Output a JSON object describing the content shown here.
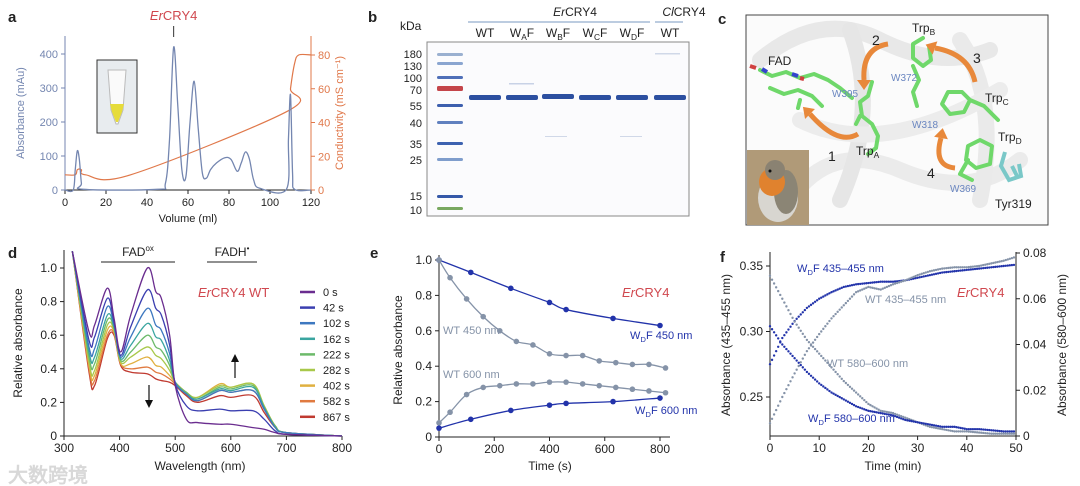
{
  "panel_labels": {
    "a": "a",
    "b": "b",
    "c": "c",
    "d": "d",
    "e": "e",
    "f": "f"
  },
  "protein": {
    "italic": "Er",
    "rest": "CRY4"
  },
  "colors": {
    "red": "#d0484f",
    "blue": "#2233aa",
    "gray": "#8593a8",
    "orange": "#e0784a",
    "abs_blue": "#7486b0"
  },
  "watermark": "大数跨境",
  "chart_data": [
    {
      "panel": "a",
      "type": "line",
      "xlabel": "Volume (ml)",
      "ylabel": "Absorbance (mAu)",
      "y2label": "Conductivity (mS cm⁻¹)",
      "xlim": [
        0,
        120
      ],
      "ylim": [
        0,
        400
      ],
      "y2lim": [
        0,
        80
      ],
      "xticks": [
        0,
        20,
        40,
        60,
        80,
        100,
        120
      ],
      "yticks": [
        0,
        100,
        200,
        300,
        400
      ],
      "y2ticks": [
        0,
        20,
        40,
        60,
        80
      ],
      "peak_annotation": {
        "x": 53
      },
      "series": [
        {
          "name": "Absorbance",
          "axis": "left",
          "points": [
            [
              0,
              0
            ],
            [
              4,
              0
            ],
            [
              5,
              60
            ],
            [
              6,
              115
            ],
            [
              7,
              90
            ],
            [
              8,
              20
            ],
            [
              9,
              2
            ],
            [
              45,
              2
            ],
            [
              49,
              20
            ],
            [
              51,
              150
            ],
            [
              53,
              420
            ],
            [
              55,
              250
            ],
            [
              57,
              60
            ],
            [
              59,
              40
            ],
            [
              61,
              200
            ],
            [
              63,
              320
            ],
            [
              65,
              180
            ],
            [
              67,
              50
            ],
            [
              69,
              35
            ],
            [
              71,
              60
            ],
            [
              74,
              80
            ],
            [
              78,
              95
            ],
            [
              81,
              90
            ],
            [
              84,
              55
            ],
            [
              86,
              80
            ],
            [
              88,
              112
            ],
            [
              90,
              90
            ],
            [
              92,
              30
            ],
            [
              95,
              5
            ],
            [
              108,
              2
            ],
            [
              109,
              150
            ],
            [
              110,
              280
            ],
            [
              111,
              50
            ],
            [
              112,
              2
            ],
            [
              120,
              0
            ]
          ]
        },
        {
          "name": "Conductivity",
          "axis": "right",
          "points": [
            [
              0,
              9
            ],
            [
              5,
              9
            ],
            [
              6,
              12
            ],
            [
              8,
              12
            ],
            [
              10,
              9
            ],
            [
              32,
              9
            ],
            [
              109,
              47
            ],
            [
              110,
              60
            ],
            [
              112,
              75
            ],
            [
              114,
              80
            ],
            [
              120,
              80
            ]
          ]
        }
      ]
    },
    {
      "panel": "b",
      "type": "gel",
      "unit_label": "kDa",
      "group_labels": [
        {
          "italic": "Er",
          "rest": "CRY4"
        },
        {
          "italic": "Cl",
          "rest": "CRY4"
        }
      ],
      "lanes": [
        {
          "main": "WT",
          "sub": "",
          "tail": ""
        },
        {
          "main": "W",
          "sub": "A",
          "tail": "F"
        },
        {
          "main": "W",
          "sub": "B",
          "tail": "F"
        },
        {
          "main": "W",
          "sub": "C",
          "tail": "F"
        },
        {
          "main": "W",
          "sub": "D",
          "tail": "F"
        },
        {
          "main": "WT",
          "sub": "",
          "tail": ""
        }
      ],
      "ladder_kda": [
        "180",
        "130",
        "100",
        "70",
        "55",
        "40",
        "35",
        "25",
        "15",
        "10"
      ]
    },
    {
      "panel": "c",
      "type": "structure",
      "labels": {
        "fad": "FAD",
        "trp_a": {
          "main": "Trp",
          "sub": "A"
        },
        "trp_b": {
          "main": "Trp",
          "sub": "B"
        },
        "trp_c": {
          "main": "Trp",
          "sub": "C"
        },
        "trp_d": {
          "main": "Trp",
          "sub": "D"
        },
        "w395": "W395",
        "w372": "W372",
        "w318": "W318",
        "w369": "W369",
        "tyr": "Tyr319",
        "step1": "1",
        "step2": "2",
        "step3": "3",
        "step4": "4"
      }
    },
    {
      "panel": "d",
      "type": "line",
      "title": {
        "italic": "Er",
        "rest": "CRY4 WT"
      },
      "xlabel": "Wavelength (nm)",
      "ylabel": "Relative absorbance",
      "xlim": [
        300,
        800
      ],
      "ylim": [
        0,
        1.1
      ],
      "xticks": [
        300,
        400,
        500,
        600,
        700,
        800
      ],
      "yticks": [
        {
          "v": 0,
          "t": "0"
        },
        {
          "v": 0.2,
          "t": "0.2"
        },
        {
          "v": 0.4,
          "t": "0.4"
        },
        {
          "v": 0.6,
          "t": "0.6"
        },
        {
          "v": 0.8,
          "t": "0.8"
        },
        {
          "v": 1.0,
          "t": "1.0"
        }
      ],
      "bands": [
        {
          "main": "FAD",
          "sup": "ox"
        },
        {
          "main": "FADH",
          "sup": "•"
        }
      ],
      "wavelengths": [
        315,
        345,
        355,
        378,
        390,
        402,
        420,
        450,
        465,
        475,
        490,
        500,
        520,
        540,
        580,
        600,
        640,
        660,
        680,
        700,
        800
      ],
      "series": [
        {
          "name": "0 s",
          "color": "#6a2d8f",
          "values": [
            1.1,
            0.62,
            0.66,
            0.88,
            0.7,
            0.5,
            0.72,
            1.0,
            0.86,
            0.82,
            0.6,
            0.3,
            0.1,
            0.08,
            0.07,
            0.07,
            0.05,
            0.04,
            0.02,
            0.01,
            0
          ]
        },
        {
          "name": "42 s",
          "color": "#3b3fb0",
          "values": [
            1.1,
            0.57,
            0.59,
            0.82,
            0.68,
            0.48,
            0.65,
            0.87,
            0.76,
            0.72,
            0.54,
            0.31,
            0.18,
            0.15,
            0.16,
            0.15,
            0.15,
            0.1,
            0.03,
            0.01,
            0
          ]
        },
        {
          "name": "102 s",
          "color": "#3d78c0",
          "values": [
            1.1,
            0.53,
            0.52,
            0.77,
            0.66,
            0.47,
            0.59,
            0.76,
            0.66,
            0.63,
            0.49,
            0.32,
            0.25,
            0.21,
            0.27,
            0.26,
            0.27,
            0.16,
            0.05,
            0.02,
            0
          ]
        },
        {
          "name": "162 s",
          "color": "#3aa5a0",
          "values": [
            1.1,
            0.5,
            0.47,
            0.72,
            0.65,
            0.46,
            0.54,
            0.67,
            0.59,
            0.57,
            0.45,
            0.32,
            0.25,
            0.22,
            0.28,
            0.27,
            0.29,
            0.17,
            0.05,
            0.02,
            0
          ]
        },
        {
          "name": "222 s",
          "color": "#6cba6a",
          "values": [
            1.1,
            0.47,
            0.43,
            0.69,
            0.64,
            0.45,
            0.5,
            0.6,
            0.53,
            0.51,
            0.42,
            0.32,
            0.26,
            0.22,
            0.29,
            0.28,
            0.3,
            0.17,
            0.06,
            0.02,
            0
          ]
        },
        {
          "name": "282 s",
          "color": "#a8c84a",
          "values": [
            1.1,
            0.44,
            0.39,
            0.66,
            0.63,
            0.44,
            0.47,
            0.53,
            0.48,
            0.46,
            0.39,
            0.32,
            0.26,
            0.23,
            0.3,
            0.29,
            0.31,
            0.18,
            0.06,
            0.02,
            0
          ]
        },
        {
          "name": "402 s",
          "color": "#e0b040",
          "values": [
            1.1,
            0.42,
            0.36,
            0.63,
            0.62,
            0.43,
            0.43,
            0.47,
            0.42,
            0.41,
            0.36,
            0.32,
            0.26,
            0.23,
            0.31,
            0.29,
            0.31,
            0.18,
            0.06,
            0.02,
            0
          ]
        },
        {
          "name": "582 s",
          "color": "#e07a40",
          "values": [
            1.1,
            0.4,
            0.33,
            0.6,
            0.61,
            0.43,
            0.4,
            0.41,
            0.38,
            0.37,
            0.34,
            0.31,
            0.25,
            0.21,
            0.27,
            0.26,
            0.27,
            0.16,
            0.05,
            0.02,
            0
          ]
        },
        {
          "name": "867 s",
          "color": "#c03a30",
          "values": [
            1.1,
            0.38,
            0.3,
            0.58,
            0.6,
            0.42,
            0.38,
            0.37,
            0.34,
            0.33,
            0.32,
            0.3,
            0.24,
            0.2,
            0.24,
            0.23,
            0.24,
            0.14,
            0.05,
            0.02,
            0
          ]
        }
      ]
    },
    {
      "panel": "e",
      "type": "scatter",
      "title": {
        "italic": "Er",
        "rest": "CRY4"
      },
      "xlabel": "Time (s)",
      "ylabel": "Relative absorbance",
      "xlim": [
        0,
        800
      ],
      "ylim": [
        0,
        1.0
      ],
      "xticks": [
        0,
        200,
        400,
        600,
        800
      ],
      "yticks": [
        {
          "v": 0,
          "t": "0"
        },
        {
          "v": 0.2,
          "t": "0.2"
        },
        {
          "v": 0.4,
          "t": "0.4"
        },
        {
          "v": 0.6,
          "t": "0.6"
        },
        {
          "v": 0.8,
          "t": "0.8"
        },
        {
          "v": 1.0,
          "t": "1.0"
        }
      ],
      "series": [
        {
          "label": {
            "main": "W",
            "sub": "D",
            "tail": "F 450 nm"
          },
          "color": "#2233aa",
          "points": [
            [
              0,
              1
            ],
            [
              115,
              0.93
            ],
            [
              260,
              0.84
            ],
            [
              400,
              0.76
            ],
            [
              460,
              0.72
            ],
            [
              630,
              0.67
            ],
            [
              800,
              0.63
            ]
          ]
        },
        {
          "label": {
            "main": "WT 450 nm",
            "sub": "",
            "tail": ""
          },
          "color": "#8593a8",
          "points": [
            [
              0,
              1
            ],
            [
              40,
              0.9
            ],
            [
              100,
              0.78
            ],
            [
              160,
              0.68
            ],
            [
              220,
              0.6
            ],
            [
              280,
              0.54
            ],
            [
              340,
              0.52
            ],
            [
              400,
              0.47
            ],
            [
              460,
              0.46
            ],
            [
              520,
              0.46
            ],
            [
              580,
              0.43
            ],
            [
              640,
              0.42
            ],
            [
              700,
              0.41
            ],
            [
              760,
              0.41
            ],
            [
              820,
              0.39
            ]
          ]
        },
        {
          "label": {
            "main": "WT 600 nm",
            "sub": "",
            "tail": ""
          },
          "color": "#8593a8",
          "points": [
            [
              0,
              0.08
            ],
            [
              40,
              0.14
            ],
            [
              100,
              0.24
            ],
            [
              160,
              0.28
            ],
            [
              220,
              0.29
            ],
            [
              280,
              0.3
            ],
            [
              340,
              0.3
            ],
            [
              400,
              0.31
            ],
            [
              460,
              0.31
            ],
            [
              520,
              0.3
            ],
            [
              580,
              0.29
            ],
            [
              640,
              0.28
            ],
            [
              700,
              0.27
            ],
            [
              760,
              0.26
            ],
            [
              820,
              0.25
            ]
          ]
        },
        {
          "label": {
            "main": "W",
            "sub": "D",
            "tail": "F 600 nm"
          },
          "color": "#2233aa",
          "points": [
            [
              0,
              0.05
            ],
            [
              115,
              0.1
            ],
            [
              260,
              0.15
            ],
            [
              400,
              0.18
            ],
            [
              460,
              0.19
            ],
            [
              630,
              0.2
            ],
            [
              800,
              0.22
            ]
          ]
        }
      ]
    },
    {
      "panel": "f",
      "type": "scatter",
      "title": {
        "italic": "Er",
        "rest": "CRY4"
      },
      "xlabel": "Time (min)",
      "ylabel": "Absorbance (435–455 nm)",
      "y2label": "Absorbance (580–600 nm)",
      "xlim": [
        0,
        50
      ],
      "ylim": [
        0.22,
        0.35
      ],
      "y2lim": [
        0,
        0.08
      ],
      "xticks": [
        0,
        10,
        20,
        30,
        40,
        50
      ],
      "yticks": [
        {
          "v": 0.25,
          "t": "0.25"
        },
        {
          "v": 0.3,
          "t": "0.30"
        },
        {
          "v": 0.35,
          "t": "0.35"
        }
      ],
      "y2ticks": [
        {
          "v": 0,
          "t": "0"
        },
        {
          "v": 0.02,
          "t": "0.02"
        },
        {
          "v": 0.04,
          "t": "0.04"
        },
        {
          "v": 0.06,
          "t": "0.06"
        },
        {
          "v": 0.08,
          "t": "0.08"
        }
      ],
      "time": [
        0,
        2.5,
        5,
        7.5,
        10,
        12.5,
        15,
        17.5,
        20,
        22.5,
        25,
        27.5,
        30,
        32.5,
        35,
        37.5,
        40,
        42.5,
        45,
        47.5,
        50
      ],
      "series": [
        {
          "label": {
            "main": "W",
            "sub": "D",
            "tail": "F 435–455 nm"
          },
          "axis": "left",
          "color": "#2233aa",
          "values": [
            0.275,
            0.295,
            0.308,
            0.318,
            0.325,
            0.33,
            0.334,
            0.336,
            0.337,
            0.338,
            0.338,
            0.339,
            0.341,
            0.343,
            0.345,
            0.346,
            0.347,
            0.348,
            0.349,
            0.35,
            0.351
          ]
        },
        {
          "label": {
            "main": "WT 435–455 nm",
            "sub": "",
            "tail": ""
          },
          "axis": "left",
          "color": "#8593a8",
          "values": [
            0.23,
            0.25,
            0.268,
            0.285,
            0.298,
            0.31,
            0.32,
            0.33,
            0.334,
            0.332,
            0.336,
            0.339,
            0.343,
            0.346,
            0.348,
            0.349,
            0.349,
            0.35,
            0.352,
            0.354,
            0.357
          ]
        },
        {
          "label": {
            "main": "WT 580–600 nm",
            "sub": "",
            "tail": ""
          },
          "axis": "right",
          "color": "#8593a8",
          "values": [
            0.07,
            0.06,
            0.05,
            0.042,
            0.036,
            0.03,
            0.024,
            0.019,
            0.014,
            0.011,
            0.01,
            0.008,
            0.006,
            0.004,
            0.003,
            0.002,
            0.002,
            0.0015,
            0.001,
            0.001,
            0.001
          ]
        },
        {
          "label": {
            "main": "W",
            "sub": "D",
            "tail": "F 580–600 nm"
          },
          "axis": "right",
          "color": "#2233aa",
          "values": [
            0.048,
            0.04,
            0.034,
            0.028,
            0.023,
            0.019,
            0.016,
            0.013,
            0.011,
            0.01,
            0.009,
            0.007,
            0.006,
            0.005,
            0.004,
            0.004,
            0.003,
            0.003,
            0.0025,
            0.002,
            0.002
          ]
        }
      ]
    }
  ]
}
